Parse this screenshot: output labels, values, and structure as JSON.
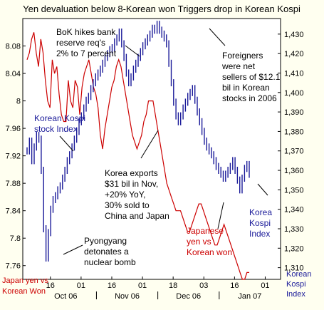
{
  "chart_data": {
    "type": "line",
    "title": "Yen devaluation below 8-Korean won Triggers drop in Korean Kospi",
    "left_axis": {
      "label": [
        "Japan yen vs",
        "Korean Won"
      ],
      "ticks": [
        "7.76",
        "7.8",
        "7.84",
        "7.88",
        "7.92",
        "7.96",
        "8",
        "8.04",
        "8.08"
      ],
      "range": [
        7.74,
        8.12
      ]
    },
    "right_axis": {
      "label": [
        "Korean",
        "Kospi",
        "Index"
      ],
      "ticks": [
        "1,310",
        "1,320",
        "1,330",
        "1,340",
        "1,350",
        "1,360",
        "1,370",
        "1,380",
        "1,390",
        "1,400",
        "1,410",
        "1,420",
        "1,430"
      ],
      "range": [
        1304,
        1438
      ]
    },
    "x_axis": {
      "day_ticks": [
        "16",
        "01",
        "16",
        "01",
        "18",
        "03",
        "16",
        "01"
      ],
      "months": [
        "Oct 06",
        "Nov 06",
        "Dec 06",
        "Jan 07"
      ]
    },
    "series": [
      {
        "name": "Japanese yen vs Korean won",
        "color": "#cc0000",
        "values": [
          8.06,
          8.07,
          8.09,
          8.1,
          8.07,
          8.05,
          8.09,
          8.07,
          8.03,
          8.0,
          7.99,
          8.06,
          8.04,
          8.05,
          8.01,
          7.98,
          7.97,
          7.97,
          8.03,
          8.0,
          7.99,
          8.03,
          8.02,
          7.98,
          8.02,
          8.04,
          8.05,
          8.06,
          8.04,
          8.02,
          8.01,
          7.99,
          7.95,
          7.93,
          7.96,
          7.98,
          8.0,
          8.02,
          8.03,
          8.05,
          8.06,
          8.05,
          8.03,
          8.01,
          7.99,
          7.97,
          7.95,
          7.94,
          7.93,
          7.94,
          7.95,
          7.97,
          7.98,
          8.0,
          8.0,
          8.0,
          7.98,
          7.96,
          7.94,
          7.92,
          7.9,
          7.88,
          7.87,
          7.86,
          7.85,
          7.84,
          7.84,
          7.84,
          7.83,
          7.82,
          7.81,
          7.81,
          7.82,
          7.83,
          7.84,
          7.85,
          7.85,
          7.84,
          7.83,
          7.82,
          7.81,
          7.8,
          7.79,
          7.79,
          7.8,
          7.81,
          7.82,
          7.81,
          7.8,
          7.79,
          7.78,
          7.77,
          7.76,
          7.75,
          7.74,
          7.74,
          7.75,
          7.75
        ]
      },
      {
        "name": "Korean Kospi stock Index",
        "color": "#1a1a99",
        "values": [
          1370,
          1375,
          1365,
          1372,
          1378,
          1376,
          1360,
          1330,
          1315,
          1328,
          1340,
          1345,
          1347,
          1350,
          1352,
          1356,
          1360,
          1365,
          1368,
          1372,
          1376,
          1380,
          1385,
          1388,
          1392,
          1396,
          1398,
          1402,
          1405,
          1408,
          1410,
          1412,
          1415,
          1418,
          1420,
          1422,
          1423,
          1426,
          1428,
          1431,
          1425,
          1418,
          1410,
          1405,
          1408,
          1412,
          1415,
          1418,
          1421,
          1424,
          1426,
          1428,
          1430,
          1433,
          1432,
          1435,
          1432,
          1430,
          1428,
          1425,
          1415,
          1405,
          1395,
          1388,
          1385,
          1388,
          1392,
          1395,
          1398,
          1400,
          1402,
          1396,
          1390,
          1385,
          1380,
          1375,
          1372,
          1370,
          1368,
          1365,
          1362,
          1360,
          1358,
          1356,
          1358,
          1360,
          1362,
          1365,
          1360,
          1355,
          1350,
          1356,
          1361,
          1363,
          1358
        ]
      }
    ],
    "annotations": {
      "kospi_label": [
        "Korean Kospi",
        "stock Index"
      ],
      "bok": [
        "BoK hikes bank",
        "reserve req's",
        "2% to 7 percent"
      ],
      "foreigners": [
        "Foreigners",
        "were net",
        "sellers of $12.1",
        "bil in Korean",
        "stocks in 2006"
      ],
      "exports": [
        "Korea exports",
        "$31 bil in Nov,",
        "+20% YoY,",
        "30% sold to",
        "China and Japan"
      ],
      "pyongyang": [
        "Pyongyang",
        "detonates a",
        "nuclear bomb"
      ],
      "yen_label": [
        "Japanese",
        "yen vs",
        "Korean won"
      ],
      "kospi_right_label": [
        "Korea",
        "Kospi",
        "Index"
      ]
    }
  }
}
